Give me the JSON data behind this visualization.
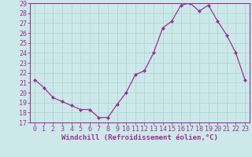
{
  "x": [
    0,
    1,
    2,
    3,
    4,
    5,
    6,
    7,
    8,
    9,
    10,
    11,
    12,
    13,
    14,
    15,
    16,
    17,
    18,
    19,
    20,
    21,
    22,
    23
  ],
  "y": [
    21.3,
    20.5,
    19.5,
    19.1,
    18.7,
    18.3,
    18.3,
    17.5,
    17.5,
    18.8,
    20.0,
    21.8,
    22.2,
    24.0,
    26.5,
    27.2,
    28.8,
    29.0,
    28.2,
    28.8,
    27.2,
    25.8,
    24.0,
    21.3
  ],
  "line_color": "#993399",
  "marker": "D",
  "marker_size": 2.0,
  "bg_color": "#cce8e8",
  "grid_color": "#b0d8d8",
  "axis_color": "#993399",
  "tick_color": "#993399",
  "xlabel": "Windchill (Refroidissement éolien,°C)",
  "ylim": [
    17,
    29
  ],
  "xlim": [
    -0.5,
    23.5
  ],
  "yticks": [
    17,
    18,
    19,
    20,
    21,
    22,
    23,
    24,
    25,
    26,
    27,
    28,
    29
  ],
  "xticks": [
    0,
    1,
    2,
    3,
    4,
    5,
    6,
    7,
    8,
    9,
    10,
    11,
    12,
    13,
    14,
    15,
    16,
    17,
    18,
    19,
    20,
    21,
    22,
    23
  ],
  "xlabel_fontsize": 6.5,
  "tick_fontsize": 6.0,
  "linewidth": 0.9
}
